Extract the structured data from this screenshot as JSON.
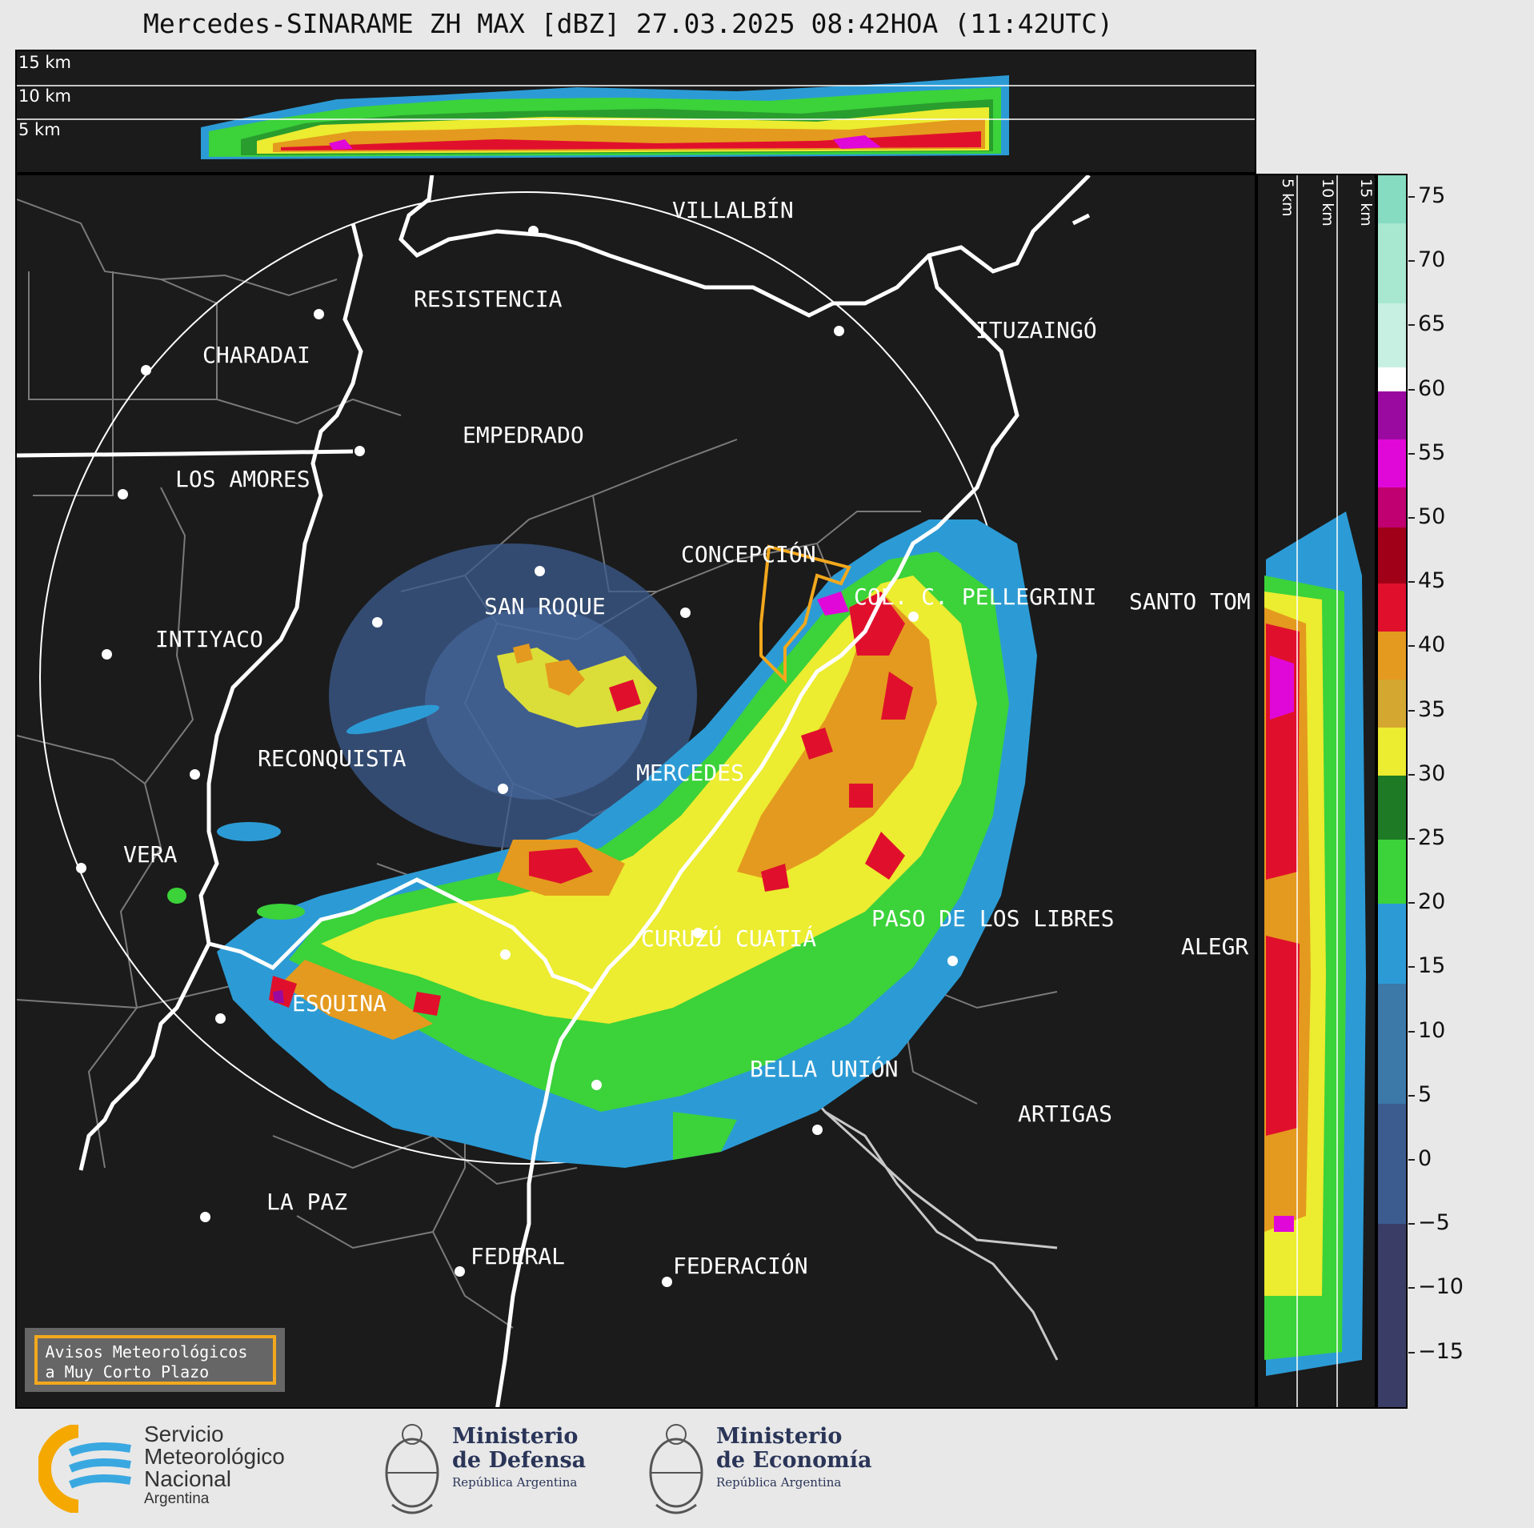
{
  "title": "Mercedes-SINARAME ZH MAX [dBZ] 27.03.2025 08:42HOA (11:42UTC)",
  "top_section": {
    "labels": [
      "15 km",
      "10 km",
      "5 km"
    ]
  },
  "side_section": {
    "labels": [
      "5 km",
      "10 km",
      "15 km"
    ]
  },
  "colorbar": {
    "ticks": [
      "75",
      "70",
      "65",
      "60",
      "55",
      "50",
      "45",
      "40",
      "35",
      "30",
      "25",
      "20",
      "15",
      "10",
      "5",
      "0",
      "−5",
      "−10",
      "−15"
    ],
    "colors": {
      "gray": "#3a3d66",
      "blue_low": "#3c5c8f",
      "blue": "#2c9bd5",
      "green": "#3bd23a",
      "dark_green": "#1e7a24",
      "yellow": "#ecec30",
      "orange": "#e49a1e",
      "red": "#e0102c",
      "dark_red": "#a00018",
      "magenta": "#e008d8",
      "purple": "#9a0aa0",
      "white": "#ffffff",
      "teal": "#86dcc0"
    }
  },
  "cities": [
    {
      "name": "VILLALBÍN"
    },
    {
      "name": "RESISTENCIA"
    },
    {
      "name": "CHARADAI"
    },
    {
      "name": "ITUZAINGÓ"
    },
    {
      "name": "EMPEDRADO"
    },
    {
      "name": "LOS AMORES"
    },
    {
      "name": "CONCEPCIÓN"
    },
    {
      "name": "COL. C. PELLEGRINI"
    },
    {
      "name": "SANTO TOM"
    },
    {
      "name": "SAN ROQUE"
    },
    {
      "name": "INTIYACO"
    },
    {
      "name": "RECONQUISTA"
    },
    {
      "name": "MERCEDES"
    },
    {
      "name": "VERA"
    },
    {
      "name": "PASO DE LOS LIBRES"
    },
    {
      "name": "CURUZÚ CUATIÁ"
    },
    {
      "name": "ALEGR"
    },
    {
      "name": "ESQUINA"
    },
    {
      "name": "BELLA UNIÓN"
    },
    {
      "name": "ARTIGAS"
    },
    {
      "name": "LA PAZ"
    },
    {
      "name": "FEDERAL"
    },
    {
      "name": "FEDERACIÓN"
    }
  ],
  "warning_box": {
    "line1": "Avisos Meteorológicos",
    "line2": "a Muy Corto Plazo",
    "color": "#f2a81d"
  },
  "logos": {
    "smn": [
      "Servicio",
      "Meteorológico",
      "Nacional",
      "Argentina"
    ],
    "defensa": [
      "Ministerio",
      "de Defensa",
      "República Argentina"
    ],
    "economia": [
      "Ministerio",
      "de Economía",
      "República Argentina"
    ]
  }
}
